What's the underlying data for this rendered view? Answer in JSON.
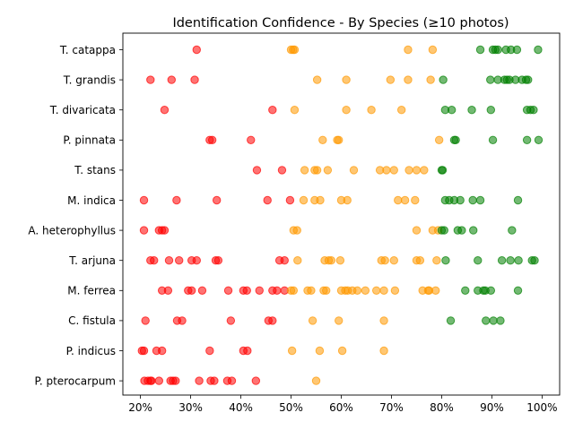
{
  "chart_data": {
    "type": "scatter",
    "title": "Identification Confidence - By Species (≥10 photos)",
    "xlabel": "",
    "ylabel": "",
    "xlim": [
      0.165,
      1.035
    ],
    "x_ticks": [
      0.2,
      0.3,
      0.4,
      0.5,
      0.6,
      0.7,
      0.8,
      0.9,
      1.0
    ],
    "x_tick_labels": [
      "20%",
      "30%",
      "40%",
      "50%",
      "60%",
      "70%",
      "80%",
      "90%",
      "100%"
    ],
    "grid": false,
    "legend": "none",
    "colors": {
      "low": "#ff0000",
      "medium": "#ff9900",
      "high": "#008000"
    },
    "categories": [
      "T. catappa",
      "T. grandis",
      "T. divaricata",
      "P. pinnata",
      "T. stans",
      "M. indica",
      "A. heterophyllus",
      "T. arjuna",
      "M. ferrea",
      "C. fistula",
      "P. indicus",
      "P. pterocarpum"
    ],
    "points": [
      {
        "y": "T. catappa",
        "x": [
          0.312,
          0.5,
          0.504,
          0.507,
          0.733,
          0.782,
          0.877,
          0.902,
          0.907,
          0.912,
          0.928,
          0.938,
          0.95,
          0.992
        ]
      },
      {
        "y": "T. grandis",
        "x": [
          0.22,
          0.262,
          0.308,
          0.552,
          0.61,
          0.698,
          0.733,
          0.778,
          0.803,
          0.897,
          0.912,
          0.925,
          0.93,
          0.935,
          0.947,
          0.96,
          0.968,
          0.972
        ]
      },
      {
        "y": "T. divaricata",
        "x": [
          0.248,
          0.463,
          0.507,
          0.61,
          0.66,
          0.72,
          0.807,
          0.82,
          0.86,
          0.898,
          0.97,
          0.977,
          0.983
        ]
      },
      {
        "y": "P. pinnata",
        "x": [
          0.338,
          0.343,
          0.42,
          0.563,
          0.592,
          0.595,
          0.795,
          0.825,
          0.828,
          0.902,
          0.97,
          0.993
        ]
      },
      {
        "y": "T. stans",
        "x": [
          0.432,
          0.482,
          0.527,
          0.547,
          0.552,
          0.573,
          0.625,
          0.677,
          0.69,
          0.705,
          0.735,
          0.75,
          0.765,
          0.8,
          0.802
        ]
      },
      {
        "y": "M. indica",
        "x": [
          0.207,
          0.272,
          0.352,
          0.453,
          0.498,
          0.525,
          0.547,
          0.558,
          0.6,
          0.612,
          0.713,
          0.727,
          0.747,
          0.807,
          0.815,
          0.825,
          0.837,
          0.862,
          0.877,
          0.952
        ]
      },
      {
        "y": "A. heterophyllus",
        "x": [
          0.207,
          0.237,
          0.243,
          0.248,
          0.505,
          0.512,
          0.75,
          0.782,
          0.793,
          0.8,
          0.805,
          0.832,
          0.84,
          0.863,
          0.94
        ]
      },
      {
        "y": "T. arjuna",
        "x": [
          0.22,
          0.227,
          0.257,
          0.277,
          0.302,
          0.312,
          0.35,
          0.355,
          0.477,
          0.487,
          0.513,
          0.567,
          0.575,
          0.58,
          0.598,
          0.68,
          0.687,
          0.705,
          0.75,
          0.757,
          0.79,
          0.808,
          0.872,
          0.92,
          0.937,
          0.953,
          0.98,
          0.985
        ]
      },
      {
        "y": "M. ferrea",
        "x": [
          0.243,
          0.255,
          0.295,
          0.302,
          0.323,
          0.375,
          0.405,
          0.412,
          0.437,
          0.463,
          0.472,
          0.487,
          0.5,
          0.505,
          0.533,
          0.54,
          0.565,
          0.57,
          0.6,
          0.608,
          0.613,
          0.622,
          0.632,
          0.648,
          0.67,
          0.685,
          0.707,
          0.762,
          0.773,
          0.775,
          0.788,
          0.847,
          0.872,
          0.883,
          0.887,
          0.898,
          0.952
        ]
      },
      {
        "y": "C. fistula",
        "x": [
          0.21,
          0.273,
          0.283,
          0.38,
          0.455,
          0.463,
          0.543,
          0.595,
          0.685,
          0.818,
          0.888,
          0.903,
          0.917
        ]
      },
      {
        "y": "P. indicus",
        "x": [
          0.203,
          0.207,
          0.232,
          0.243,
          0.338,
          0.405,
          0.413,
          0.502,
          0.557,
          0.602,
          0.685
        ]
      },
      {
        "y": "P. pterocarpum",
        "x": [
          0.208,
          0.215,
          0.22,
          0.222,
          0.237,
          0.26,
          0.265,
          0.27,
          0.317,
          0.34,
          0.347,
          0.373,
          0.382,
          0.43,
          0.55
        ]
      }
    ]
  }
}
